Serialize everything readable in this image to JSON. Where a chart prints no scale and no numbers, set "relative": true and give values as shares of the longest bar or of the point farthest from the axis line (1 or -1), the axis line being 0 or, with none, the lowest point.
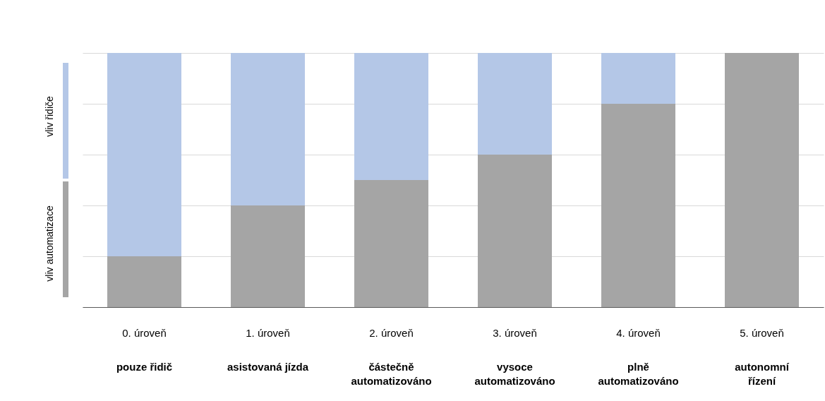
{
  "chart_data": {
    "type": "bar",
    "stacked": true,
    "relative": true,
    "grid": "y",
    "legend": false,
    "categories": [
      "0. úroveň\npouze řidič",
      "1. úroveň\nasistovaná jízda",
      "2. úroveň\nčástečně\nautomatizováno",
      "3. úroveň\nvysoce\nautomatizováno",
      "4. úroveň\nplně\nautomatizováno",
      "5. úroveň\nautonomní\nřízení"
    ],
    "series": [
      {
        "color": "#a5a5a5",
        "values": [
          0.2,
          0.4,
          0.5,
          0.6,
          0.8,
          1.0
        ]
      },
      {
        "color": "#b4c7e7",
        "values": [
          0.8,
          0.6,
          0.5,
          0.4,
          0.2,
          0.0
        ]
      }
    ],
    "annotations": [
      "vliv řidiče",
      "vliv automatizace"
    ]
  }
}
